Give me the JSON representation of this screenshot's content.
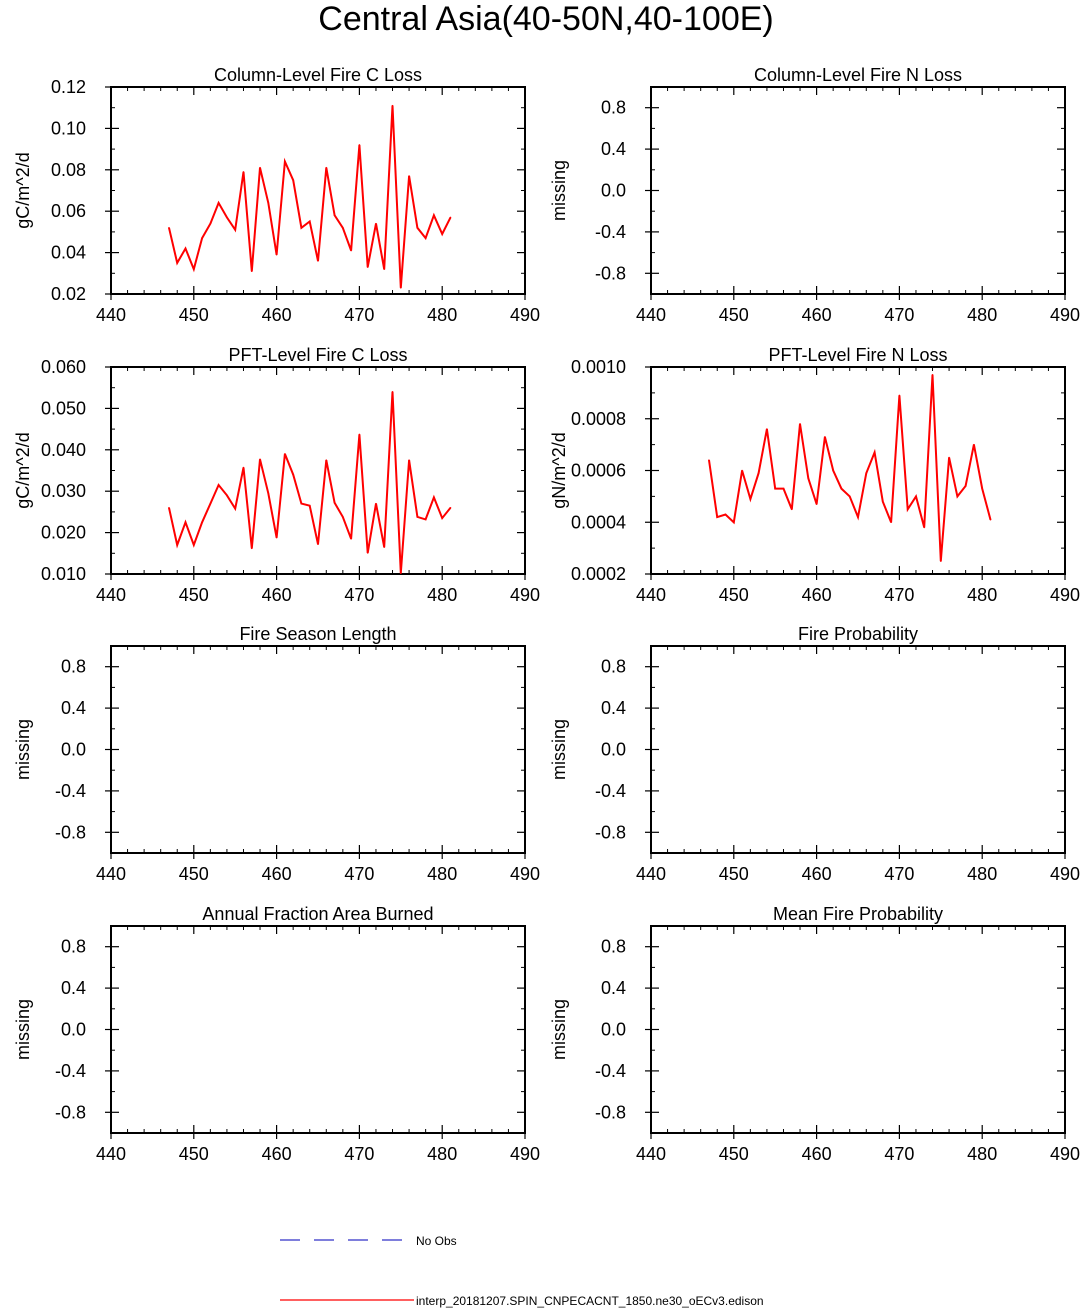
{
  "figure": {
    "title": "Central Asia(40-50N,40-100E)",
    "legend": [
      {
        "label": "No Obs",
        "color": "#3030c8",
        "style": "dashed"
      },
      {
        "label": "interp_20181207.SPIN_CNPECACNT_1850.ne30_oECv3.edison",
        "color": "#ff0000",
        "style": "solid"
      }
    ]
  },
  "chart_data": [
    {
      "type": "line",
      "title": "Column-Level Fire C Loss",
      "ylabel": "gC/m^2/d",
      "xlim": [
        440,
        490
      ],
      "ylim": [
        0.02,
        0.12
      ],
      "xticks": [
        "440",
        "450",
        "460",
        "470",
        "480",
        "490"
      ],
      "yticks": [
        "0.02",
        "0.04",
        "0.06",
        "0.08",
        "0.10",
        "0.12"
      ],
      "series": [
        {
          "color": "#ff0000",
          "x": [
            447,
            448,
            449,
            450,
            451,
            452,
            453,
            454,
            455,
            456,
            457,
            458,
            459,
            460,
            461,
            462,
            463,
            464,
            465,
            466,
            467,
            468,
            469,
            470,
            471,
            472,
            473,
            474,
            475,
            476,
            477,
            478,
            479,
            480,
            481
          ],
          "values": [
            0.052,
            0.035,
            0.042,
            0.032,
            0.047,
            0.054,
            0.064,
            0.057,
            0.051,
            0.079,
            0.031,
            0.081,
            0.064,
            0.039,
            0.084,
            0.075,
            0.052,
            0.055,
            0.036,
            0.081,
            0.058,
            0.052,
            0.041,
            0.092,
            0.033,
            0.054,
            0.032,
            0.111,
            0.023,
            0.077,
            0.052,
            0.047,
            0.058,
            0.049,
            0.057
          ]
        }
      ]
    },
    {
      "type": "line",
      "title": "Column-Level Fire N Loss",
      "ylabel": "missing",
      "xlim": [
        440,
        490
      ],
      "ylim": [
        -1,
        1
      ],
      "xticks": [
        "440",
        "450",
        "460",
        "470",
        "480",
        "490"
      ],
      "yticks": [
        "-0.8",
        "-0.4",
        "0.0",
        "0.4",
        "0.8"
      ],
      "series": []
    },
    {
      "type": "line",
      "title": "PFT-Level Fire C Loss",
      "ylabel": "gC/m^2/d",
      "xlim": [
        440,
        490
      ],
      "ylim": [
        0.01,
        0.06
      ],
      "xticks": [
        "440",
        "450",
        "460",
        "470",
        "480",
        "490"
      ],
      "yticks": [
        "0.010",
        "0.020",
        "0.030",
        "0.040",
        "0.050",
        "0.060"
      ],
      "series": [
        {
          "color": "#ff0000",
          "x": [
            447,
            448,
            449,
            450,
            451,
            452,
            453,
            454,
            455,
            456,
            457,
            458,
            459,
            460,
            461,
            462,
            463,
            464,
            465,
            466,
            467,
            468,
            469,
            470,
            471,
            472,
            473,
            474,
            475,
            476,
            477,
            478,
            479,
            480,
            481
          ],
          "values": [
            0.026,
            0.017,
            0.0225,
            0.017,
            0.0225,
            0.027,
            0.0315,
            0.029,
            0.0258,
            0.0357,
            0.0162,
            0.0377,
            0.0295,
            0.0188,
            0.039,
            0.034,
            0.027,
            0.0265,
            0.0172,
            0.0375,
            0.0272,
            0.0238,
            0.0185,
            0.0437,
            0.0151,
            0.027,
            0.0165,
            0.054,
            0.0102,
            0.0375,
            0.0238,
            0.0232,
            0.0285,
            0.0235,
            0.026
          ]
        }
      ]
    },
    {
      "type": "line",
      "title": "PFT-Level Fire N Loss",
      "ylabel": "gN/m^2/d",
      "xlim": [
        440,
        490
      ],
      "ylim": [
        0.0002,
        0.001
      ],
      "xticks": [
        "440",
        "450",
        "460",
        "470",
        "480",
        "490"
      ],
      "yticks": [
        "0.0002",
        "0.0004",
        "0.0006",
        "0.0008",
        "0.0010"
      ],
      "series": [
        {
          "color": "#ff0000",
          "x": [
            447,
            448,
            449,
            450,
            451,
            452,
            453,
            454,
            455,
            456,
            457,
            458,
            459,
            460,
            461,
            462,
            463,
            464,
            465,
            466,
            467,
            468,
            469,
            470,
            471,
            472,
            473,
            474,
            475,
            476,
            477,
            478,
            479,
            480,
            481
          ],
          "values": [
            0.00064,
            0.00042,
            0.00043,
            0.0004,
            0.0006,
            0.00049,
            0.00059,
            0.00076,
            0.00053,
            0.00053,
            0.00045,
            0.00078,
            0.00057,
            0.00047,
            0.00073,
            0.0006,
            0.00053,
            0.0005,
            0.00042,
            0.00059,
            0.00067,
            0.00048,
            0.0004,
            0.00089,
            0.00045,
            0.0005,
            0.00038,
            0.00097,
            0.00025,
            0.00065,
            0.0005,
            0.00054,
            0.0007,
            0.00053,
            0.00041
          ]
        }
      ]
    },
    {
      "type": "line",
      "title": "Fire Season Length",
      "ylabel": "missing",
      "xlim": [
        440,
        490
      ],
      "ylim": [
        -1,
        1
      ],
      "xticks": [
        "440",
        "450",
        "460",
        "470",
        "480",
        "490"
      ],
      "yticks": [
        "-0.8",
        "-0.4",
        "0.0",
        "0.4",
        "0.8"
      ],
      "series": []
    },
    {
      "type": "line",
      "title": "Fire Probability",
      "ylabel": "missing",
      "xlim": [
        440,
        490
      ],
      "ylim": [
        -1,
        1
      ],
      "xticks": [
        "440",
        "450",
        "460",
        "470",
        "480",
        "490"
      ],
      "yticks": [
        "-0.8",
        "-0.4",
        "0.0",
        "0.4",
        "0.8"
      ],
      "series": []
    },
    {
      "type": "line",
      "title": "Annual Fraction Area Burned",
      "ylabel": "missing",
      "xlim": [
        440,
        490
      ],
      "ylim": [
        -1,
        1
      ],
      "xticks": [
        "440",
        "450",
        "460",
        "470",
        "480",
        "490"
      ],
      "yticks": [
        "-0.8",
        "-0.4",
        "0.0",
        "0.4",
        "0.8"
      ],
      "series": []
    },
    {
      "type": "line",
      "title": "Mean Fire Probability",
      "ylabel": "missing",
      "xlim": [
        440,
        490
      ],
      "ylim": [
        -1,
        1
      ],
      "xticks": [
        "440",
        "450",
        "460",
        "470",
        "480",
        "490"
      ],
      "yticks": [
        "-0.8",
        "-0.4",
        "0.0",
        "0.4",
        "0.8"
      ],
      "series": []
    }
  ]
}
